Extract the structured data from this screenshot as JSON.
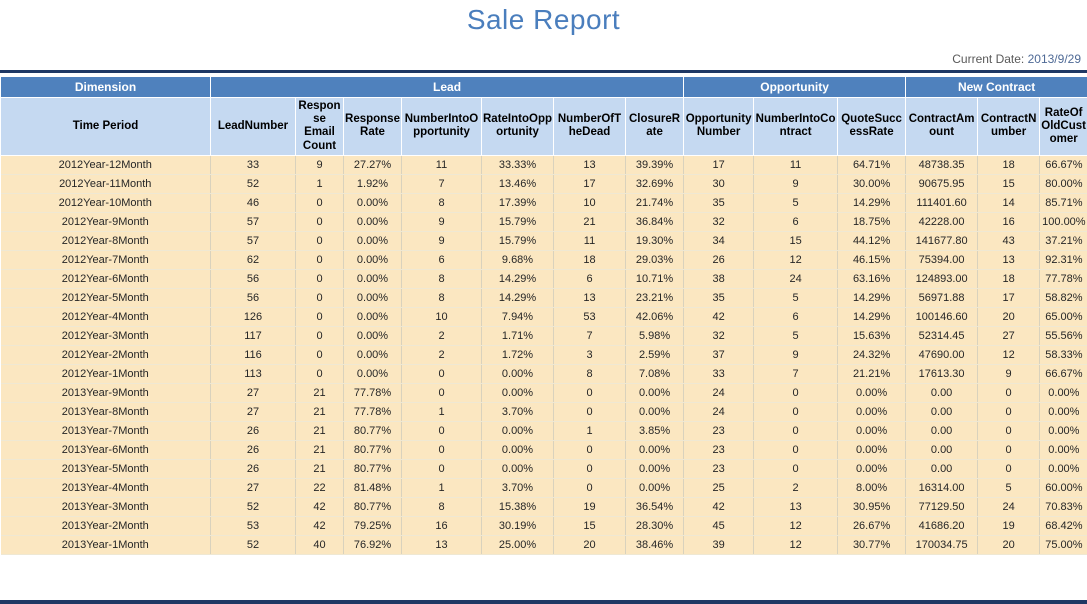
{
  "report": {
    "title": "Sale Report",
    "current_date_label": "Current Date:",
    "current_date_value": "2013/9/29"
  },
  "colors": {
    "title_text": "#4a7ebd",
    "group_header_bg": "#4f81bd",
    "group_header_text": "#ffffff",
    "sub_header_bg": "#c5d9f1",
    "row_bg": "#fbe7c1",
    "accent_line": "#1f3864",
    "date_text": "#595959"
  },
  "table": {
    "group_headers": [
      {
        "label": "Dimension",
        "colspan": 1
      },
      {
        "label": "Lead",
        "colspan": 7
      },
      {
        "label": "Opportunity",
        "colspan": 3
      },
      {
        "label": "New Contract",
        "colspan": 3
      }
    ],
    "columns": [
      "Time Period",
      "LeadNumber",
      "Response Email Count",
      "Response Rate",
      "NumberIntoOpportunity",
      "RateIntoOpportunity",
      "NumberOfTheDead",
      "ClosureRate",
      "Opportunity Number",
      "NumberIntoContract",
      "QuoteSuccessRate",
      "ContractAmount",
      "ContractNumber",
      "RateOfOldCustomer"
    ],
    "rows": [
      [
        "2012Year-12Month",
        "33",
        "9",
        "27.27%",
        "11",
        "33.33%",
        "13",
        "39.39%",
        "17",
        "11",
        "64.71%",
        "48738.35",
        "18",
        "66.67%"
      ],
      [
        "2012Year-11Month",
        "52",
        "1",
        "1.92%",
        "7",
        "13.46%",
        "17",
        "32.69%",
        "30",
        "9",
        "30.00%",
        "90675.95",
        "15",
        "80.00%"
      ],
      [
        "2012Year-10Month",
        "46",
        "0",
        "0.00%",
        "8",
        "17.39%",
        "10",
        "21.74%",
        "35",
        "5",
        "14.29%",
        "111401.60",
        "14",
        "85.71%"
      ],
      [
        "2012Year-9Month",
        "57",
        "0",
        "0.00%",
        "9",
        "15.79%",
        "21",
        "36.84%",
        "32",
        "6",
        "18.75%",
        "42228.00",
        "16",
        "100.00%"
      ],
      [
        "2012Year-8Month",
        "57",
        "0",
        "0.00%",
        "9",
        "15.79%",
        "11",
        "19.30%",
        "34",
        "15",
        "44.12%",
        "141677.80",
        "43",
        "37.21%"
      ],
      [
        "2012Year-7Month",
        "62",
        "0",
        "0.00%",
        "6",
        "9.68%",
        "18",
        "29.03%",
        "26",
        "12",
        "46.15%",
        "75394.00",
        "13",
        "92.31%"
      ],
      [
        "2012Year-6Month",
        "56",
        "0",
        "0.00%",
        "8",
        "14.29%",
        "6",
        "10.71%",
        "38",
        "24",
        "63.16%",
        "124893.00",
        "18",
        "77.78%"
      ],
      [
        "2012Year-5Month",
        "56",
        "0",
        "0.00%",
        "8",
        "14.29%",
        "13",
        "23.21%",
        "35",
        "5",
        "14.29%",
        "56971.88",
        "17",
        "58.82%"
      ],
      [
        "2012Year-4Month",
        "126",
        "0",
        "0.00%",
        "10",
        "7.94%",
        "53",
        "42.06%",
        "42",
        "6",
        "14.29%",
        "100146.60",
        "20",
        "65.00%"
      ],
      [
        "2012Year-3Month",
        "117",
        "0",
        "0.00%",
        "2",
        "1.71%",
        "7",
        "5.98%",
        "32",
        "5",
        "15.63%",
        "52314.45",
        "27",
        "55.56%"
      ],
      [
        "2012Year-2Month",
        "116",
        "0",
        "0.00%",
        "2",
        "1.72%",
        "3",
        "2.59%",
        "37",
        "9",
        "24.32%",
        "47690.00",
        "12",
        "58.33%"
      ],
      [
        "2012Year-1Month",
        "113",
        "0",
        "0.00%",
        "0",
        "0.00%",
        "8",
        "7.08%",
        "33",
        "7",
        "21.21%",
        "17613.30",
        "9",
        "66.67%"
      ],
      [
        "2013Year-9Month",
        "27",
        "21",
        "77.78%",
        "0",
        "0.00%",
        "0",
        "0.00%",
        "24",
        "0",
        "0.00%",
        "0.00",
        "0",
        "0.00%"
      ],
      [
        "2013Year-8Month",
        "27",
        "21",
        "77.78%",
        "1",
        "3.70%",
        "0",
        "0.00%",
        "24",
        "0",
        "0.00%",
        "0.00",
        "0",
        "0.00%"
      ],
      [
        "2013Year-7Month",
        "26",
        "21",
        "80.77%",
        "0",
        "0.00%",
        "1",
        "3.85%",
        "23",
        "0",
        "0.00%",
        "0.00",
        "0",
        "0.00%"
      ],
      [
        "2013Year-6Month",
        "26",
        "21",
        "80.77%",
        "0",
        "0.00%",
        "0",
        "0.00%",
        "23",
        "0",
        "0.00%",
        "0.00",
        "0",
        "0.00%"
      ],
      [
        "2013Year-5Month",
        "26",
        "21",
        "80.77%",
        "0",
        "0.00%",
        "0",
        "0.00%",
        "23",
        "0",
        "0.00%",
        "0.00",
        "0",
        "0.00%"
      ],
      [
        "2013Year-4Month",
        "27",
        "22",
        "81.48%",
        "1",
        "3.70%",
        "0",
        "0.00%",
        "25",
        "2",
        "8.00%",
        "16314.00",
        "5",
        "60.00%"
      ],
      [
        "2013Year-3Month",
        "52",
        "42",
        "80.77%",
        "8",
        "15.38%",
        "19",
        "36.54%",
        "42",
        "13",
        "30.95%",
        "77129.50",
        "24",
        "70.83%"
      ],
      [
        "2013Year-2Month",
        "53",
        "42",
        "79.25%",
        "16",
        "30.19%",
        "15",
        "28.30%",
        "45",
        "12",
        "26.67%",
        "41686.20",
        "19",
        "68.42%"
      ],
      [
        "2013Year-1Month",
        "52",
        "40",
        "76.92%",
        "13",
        "25.00%",
        "20",
        "38.46%",
        "39",
        "12",
        "30.77%",
        "170034.75",
        "20",
        "75.00%"
      ]
    ]
  }
}
